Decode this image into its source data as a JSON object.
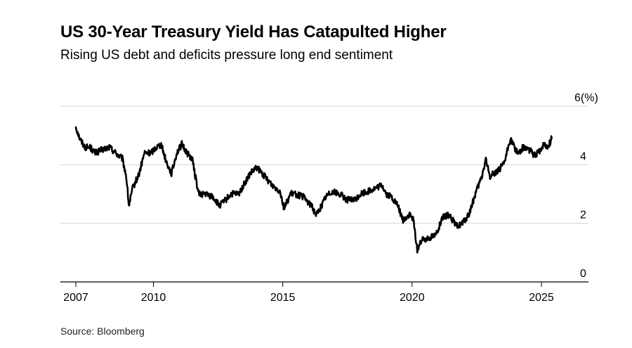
{
  "title": "US 30-Year Treasury Yield Has Catapulted Higher",
  "subtitle": "Rising US debt and deficits pressure long end sentiment",
  "source": "Source: Bloomberg",
  "chart_data": {
    "type": "line",
    "title": "US 30-Year Treasury Yield Has Catapulted Higher",
    "subtitle": "Rising US debt and deficits pressure long end sentiment",
    "ylabel": "",
    "xlabel": "",
    "ylim": [
      0,
      6
    ],
    "xlim": [
      2006.85,
      2026.0
    ],
    "y_ticks": [
      {
        "value": 0,
        "label": "0"
      },
      {
        "value": 2,
        "label": "2"
      },
      {
        "value": 4,
        "label": "4"
      },
      {
        "value": 6,
        "label": "6(%)"
      }
    ],
    "x_ticks": [
      {
        "value": 2007,
        "label": "2007"
      },
      {
        "value": 2010,
        "label": "2010"
      },
      {
        "value": 2015,
        "label": "2015"
      },
      {
        "value": 2020,
        "label": "2020"
      },
      {
        "value": 2025,
        "label": "2025"
      }
    ],
    "grid": "horizontal",
    "line_color": "#000000",
    "series": [
      {
        "values_x": [
          2007.0,
          2007.15,
          2007.35,
          2007.55,
          2007.75,
          2008.0,
          2008.3,
          2008.55,
          2008.8,
          2008.95,
          2009.05,
          2009.2,
          2009.45,
          2009.65,
          2009.9,
          2010.1,
          2010.3,
          2010.5,
          2010.7,
          2010.9,
          2011.1,
          2011.3,
          2011.5,
          2011.6,
          2011.75,
          2012.0,
          2012.3,
          2012.55,
          2012.8,
          2013.0,
          2013.3,
          2013.55,
          2013.75,
          2014.0,
          2014.3,
          2014.6,
          2014.9,
          2015.05,
          2015.3,
          2015.5,
          2015.8,
          2016.1,
          2016.3,
          2016.5,
          2016.65,
          2016.9,
          2017.2,
          2017.5,
          2017.8,
          2018.0,
          2018.3,
          2018.6,
          2018.85,
          2019.0,
          2019.2,
          2019.45,
          2019.65,
          2019.9,
          2020.05,
          2020.2,
          2020.35,
          2020.6,
          2020.9,
          2021.2,
          2021.45,
          2021.7,
          2021.95,
          2022.2,
          2022.45,
          2022.7,
          2022.85,
          2023.0,
          2023.3,
          2023.55,
          2023.8,
          2023.95,
          2024.1,
          2024.3,
          2024.55,
          2024.75,
          2024.95,
          2025.1,
          2025.25,
          2025.4
        ],
        "values": [
          5.3,
          4.9,
          4.6,
          4.6,
          4.4,
          4.5,
          4.6,
          4.4,
          4.2,
          3.6,
          2.6,
          3.2,
          3.7,
          4.4,
          4.4,
          4.6,
          4.7,
          4.1,
          3.7,
          4.4,
          4.7,
          4.4,
          4.2,
          3.7,
          3.0,
          3.0,
          2.9,
          2.6,
          2.8,
          3.0,
          3.0,
          3.4,
          3.7,
          3.9,
          3.6,
          3.3,
          3.1,
          2.5,
          3.0,
          3.0,
          2.9,
          2.6,
          2.3,
          2.6,
          2.9,
          3.1,
          3.0,
          2.8,
          2.8,
          3.0,
          3.1,
          3.2,
          3.3,
          3.0,
          2.9,
          2.6,
          2.1,
          2.3,
          2.1,
          1.1,
          1.4,
          1.5,
          1.6,
          2.2,
          2.3,
          1.9,
          2.0,
          2.3,
          3.0,
          3.6,
          4.2,
          3.6,
          3.8,
          4.0,
          4.9,
          4.6,
          4.4,
          4.6,
          4.5,
          4.3,
          4.5,
          4.7,
          4.6,
          4.9
        ]
      }
    ]
  }
}
